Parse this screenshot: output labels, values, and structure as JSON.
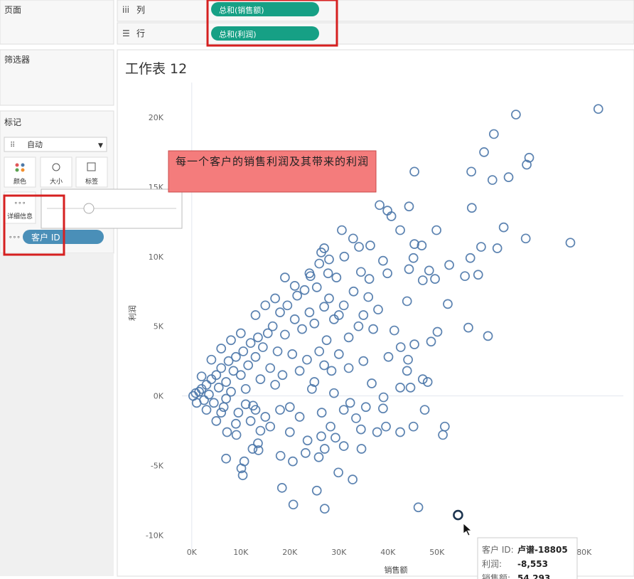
{
  "ui": {
    "pages_title": "页面",
    "filters_title": "筛选器",
    "marks_title": "标记",
    "columns_label": "列",
    "rows_label": "行",
    "columns_pill": "总和(销售额)",
    "rows_pill": "总和(利润)",
    "mark_type": "自动",
    "mark_buttons": [
      "颜色",
      "大小",
      "标签",
      "详细信息"
    ],
    "detail_pill": "客户 ID",
    "annotation": "每一个客户的销售利润及其带来的利润",
    "tooltip": [
      {
        "label": "客户 ID:",
        "value": "卢谱-18805"
      },
      {
        "label": "利润:",
        "value": "-8,553"
      },
      {
        "label": "销售额:",
        "value": "54,293"
      }
    ]
  },
  "chart_data": {
    "type": "scatter",
    "title": "工作表 12",
    "x_label": "销售额",
    "y_label": "利润",
    "color": "#4a76a8",
    "highlighted_point": 0,
    "xlim": [
      -2000,
      88000
    ],
    "ylim": [
      -11000,
      22500
    ],
    "xticks": [
      {
        "value": 0,
        "label": "0K"
      },
      {
        "value": 10000,
        "label": "10K"
      },
      {
        "value": 20000,
        "label": "20K"
      },
      {
        "value": 30000,
        "label": "30K"
      },
      {
        "value": 40000,
        "label": "40K"
      },
      {
        "value": 50000,
        "label": "50K"
      },
      {
        "value": 60000,
        "label": "60K"
      },
      {
        "value": 70000,
        "label": "70K"
      },
      {
        "value": 80000,
        "label": "80K"
      }
    ],
    "yticks": [
      {
        "value": -10000,
        "label": "-10K"
      },
      {
        "value": -5000,
        "label": "-5K"
      },
      {
        "value": 0,
        "label": "0K"
      },
      {
        "value": 5000,
        "label": "5K"
      },
      {
        "value": 10000,
        "label": "10K"
      },
      {
        "value": 15000,
        "label": "15K"
      },
      {
        "value": 20000,
        "label": "20K"
      }
    ],
    "x": [
      54293,
      82900,
      66100,
      61600,
      59600,
      68800,
      68300,
      45400,
      57000,
      64600,
      61300,
      57100,
      38300,
      44300,
      39900,
      40700,
      63600,
      49900,
      68100,
      77200,
      30600,
      42500,
      45400,
      46900,
      59000,
      62300,
      27000,
      26400,
      32900,
      34100,
      36400,
      31100,
      45200,
      56800,
      39000,
      52500,
      44300,
      48400,
      39900,
      55700,
      58400,
      49600,
      47100,
      24200,
      27800,
      34500,
      36200,
      52200,
      43900,
      56400,
      60400,
      50100,
      41300,
      48800,
      45400,
      42600,
      40100,
      44100,
      43900,
      47100,
      48100,
      44600,
      42500,
      36700,
      39100,
      39000,
      35500,
      47500,
      51600,
      51200,
      45200,
      42500,
      39600,
      37800,
      34500,
      33500,
      32300,
      28300,
      29300,
      31000,
      34600,
      26400,
      23600,
      27100,
      23200,
      25900,
      29900,
      32800,
      25500,
      18400,
      20700,
      27100,
      46200,
      18100,
      20600,
      13600,
      12400,
      7000,
      10700,
      10100,
      10400,
      13500,
      9100,
      7200,
      300,
      800,
      1500,
      2000,
      2500,
      3000,
      3500,
      4000,
      4500,
      5000,
      5500,
      6000,
      6500,
      7000,
      7500,
      8000,
      8500,
      9000,
      9500,
      10000,
      10500,
      11000,
      11500,
      12000,
      12500,
      13000,
      13500,
      14000,
      14500,
      15000,
      15500,
      16000,
      16500,
      17000,
      17500,
      18000,
      18500,
      19000,
      19500,
      20000,
      20500,
      21000,
      21500,
      22000,
      22500,
      23000,
      23500,
      24000,
      24500,
      25000,
      25500,
      26000,
      26500,
      27000,
      27500,
      28000,
      28500,
      29000,
      29500,
      30000,
      31000,
      32000,
      33000,
      34000,
      35000,
      36000,
      37000,
      38000,
      3000,
      5000,
      7000,
      9000,
      12000,
      14000,
      16000,
      18000,
      20000,
      22000,
      8000,
      10000,
      13000,
      15000,
      17000,
      19000,
      21000,
      24000,
      26000,
      28000,
      4000,
      6000,
      2000,
      1000,
      6000,
      11000,
      13000,
      25000,
      27000,
      30000,
      32000,
      35000,
      29000,
      31000
    ],
    "values": [
      -8553,
      20600,
      20200,
      18800,
      17500,
      17100,
      16600,
      16100,
      16100,
      15700,
      15500,
      13500,
      13700,
      13600,
      13300,
      12900,
      12100,
      11900,
      11300,
      11000,
      11900,
      11900,
      10900,
      10800,
      10700,
      10600,
      10600,
      10300,
      11300,
      10700,
      10800,
      10000,
      9900,
      9900,
      9700,
      9400,
      9100,
      9000,
      8800,
      8600,
      8700,
      8400,
      8300,
      8600,
      8800,
      8900,
      8400,
      6600,
      6800,
      4900,
      4300,
      4600,
      4700,
      3900,
      3700,
      3500,
      2800,
      2600,
      1800,
      1200,
      1000,
      600,
      600,
      900,
      -100,
      -900,
      -800,
      -1000,
      -2200,
      -2800,
      -2200,
      -2600,
      -2200,
      -2600,
      -2400,
      -1600,
      -500,
      -2200,
      -3000,
      -3600,
      -3800,
      -2900,
      -3200,
      -3800,
      -4100,
      -4400,
      -5500,
      -6000,
      -6800,
      -6600,
      -7800,
      -8100,
      -8000,
      -4300,
      -4700,
      -3900,
      -3800,
      -4500,
      -4700,
      -5200,
      -5700,
      -3400,
      -2800,
      -2600,
      0,
      200,
      300,
      500,
      -300,
      800,
      100,
      1200,
      -500,
      1500,
      600,
      2000,
      -800,
      1000,
      2500,
      300,
      1800,
      2800,
      -1200,
      1500,
      3200,
      500,
      2200,
      3800,
      -700,
      2800,
      4200,
      1200,
      3500,
      -1500,
      4500,
      2000,
      5000,
      800,
      3200,
      6000,
      1500,
      4400,
      6500,
      -800,
      3000,
      5500,
      7200,
      1800,
      4800,
      7600,
      2600,
      6000,
      500,
      5200,
      7800,
      3200,
      -1200,
      6400,
      4000,
      7000,
      1800,
      5500,
      8500,
      3000,
      6500,
      4200,
      7500,
      5000,
      2500,
      7100,
      4800,
      6200,
      -1000,
      -1800,
      -200,
      -2000,
      -1800,
      -2500,
      -2200,
      -1000,
      -2600,
      -1500,
      4000,
      4500,
      5800,
      6500,
      7000,
      8500,
      7900,
      8800,
      9500,
      9800,
      2600,
      3400,
      1400,
      -500,
      -1200,
      -600,
      -1000,
      1000,
      2200,
      5800,
      2000,
      5800,
      200,
      -1000
    ]
  }
}
